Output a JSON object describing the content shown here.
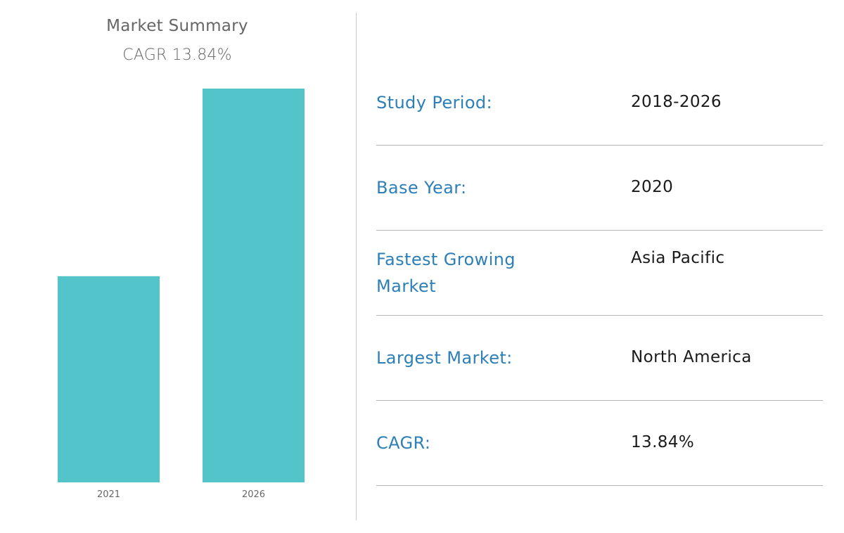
{
  "chart_data": {
    "type": "bar",
    "title": "Market Summary",
    "subtitle": "CAGR 13.84%",
    "categories": [
      "2021",
      "2026"
    ],
    "values": [
      1.0,
      1.91
    ],
    "ylim": [
      0,
      1.91
    ],
    "grid": false,
    "bar_color": "#52c4ca",
    "xlabel": "",
    "ylabel": ""
  },
  "summary": {
    "rows": [
      {
        "label": "Study Period:",
        "value": "2018-2026"
      },
      {
        "label": "Base Year:",
        "value": "2020"
      },
      {
        "label": "Fastest Growing Market",
        "value": "Asia Pacific"
      },
      {
        "label": "Largest Market:",
        "value": "North America"
      },
      {
        "label": "CAGR:",
        "value": "13.84%"
      }
    ]
  },
  "colors": {
    "label": "#2d7fb8",
    "value": "#1a1a1a",
    "divider": "#b5b5b5"
  }
}
